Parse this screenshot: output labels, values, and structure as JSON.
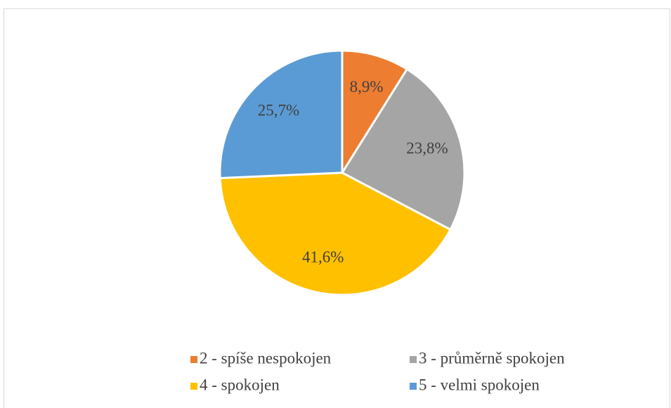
{
  "chart_data": {
    "type": "pie",
    "categories": [
      "2 - spíše nespokojen",
      "3 - průměrně spokojen",
      "4 - spokojen",
      "5 - velmi spokojen"
    ],
    "values": [
      8.9,
      23.8,
      41.6,
      25.7
    ],
    "value_labels": [
      "8,9%",
      "23,8%",
      "41,6%",
      "25,7%"
    ],
    "colors": [
      "#ED7D31",
      "#A5A5A5",
      "#FFC000",
      "#5B9BD5"
    ],
    "legend": "bottom"
  }
}
